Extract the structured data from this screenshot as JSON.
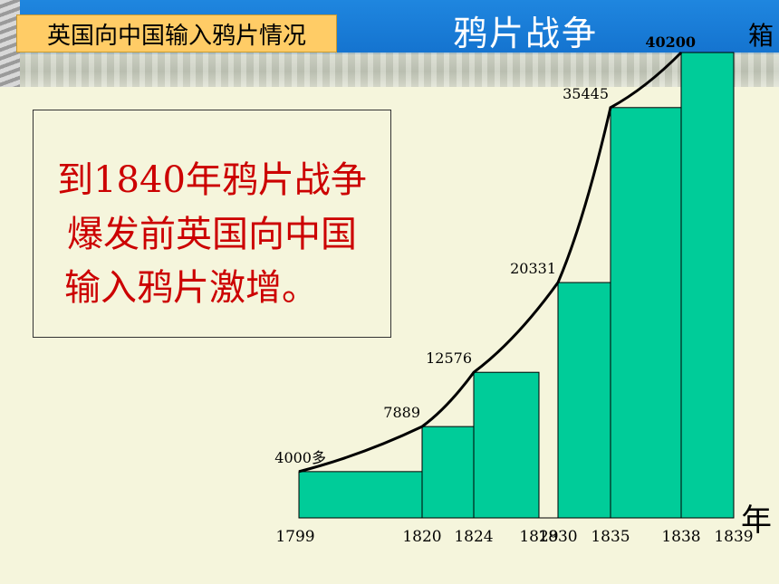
{
  "header": {
    "title": "英国向中国输入鸦片情况",
    "war_title": "鸦片战争"
  },
  "note": {
    "lines": [
      "到1840年鸦片战争",
      "爆发前英国向中国",
      "输入鸦片激增。"
    ]
  },
  "chart_data": {
    "type": "bar",
    "title": "",
    "ylabel": "箱",
    "xlabel": "年",
    "bars": [
      {
        "from": 1799,
        "to": 1820,
        "value": 4000,
        "label": "4000多"
      },
      {
        "from": 1820,
        "to": 1824,
        "value": 7889,
        "label": "7889"
      },
      {
        "from": 1824,
        "to": 1829,
        "value": 12576,
        "label": "12576"
      },
      {
        "from": 1830,
        "to": 1835,
        "value": 20331,
        "label": "20331"
      },
      {
        "from": 1835,
        "to": 1838,
        "value": 35445,
        "label": "35445"
      },
      {
        "from": 1838,
        "to": 1839,
        "value": 40200,
        "label": "40200"
      }
    ],
    "x_ticks": [
      "1799",
      "1820",
      "1824",
      "1829",
      "1830",
      "1835",
      "1838",
      "1839"
    ],
    "trend_line": true,
    "ylim": [
      0,
      40200
    ],
    "colors": {
      "bar": "#00cc99",
      "bar_stroke": "#000000",
      "line": "#000000"
    }
  }
}
